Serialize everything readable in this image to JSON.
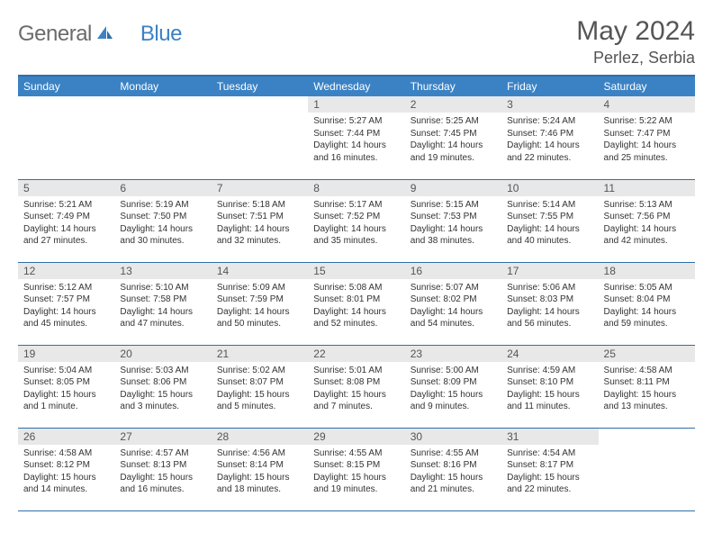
{
  "brand": {
    "part1": "General",
    "part2": "Blue"
  },
  "title": "May 2024",
  "location": "Perlez, Serbia",
  "colors": {
    "header_bg": "#3b82c4",
    "border": "#2f6fa7",
    "daynum_bg": "#e8e8e8",
    "text_muted": "#555555",
    "text_body": "#333333",
    "page_bg": "#ffffff"
  },
  "day_labels": [
    "Sunday",
    "Monday",
    "Tuesday",
    "Wednesday",
    "Thursday",
    "Friday",
    "Saturday"
  ],
  "weeks": [
    [
      {
        "empty": true
      },
      {
        "empty": true
      },
      {
        "empty": true
      },
      {
        "num": "1",
        "sunrise": "Sunrise: 5:27 AM",
        "sunset": "Sunset: 7:44 PM",
        "day1": "Daylight: 14 hours",
        "day2": "and 16 minutes."
      },
      {
        "num": "2",
        "sunrise": "Sunrise: 5:25 AM",
        "sunset": "Sunset: 7:45 PM",
        "day1": "Daylight: 14 hours",
        "day2": "and 19 minutes."
      },
      {
        "num": "3",
        "sunrise": "Sunrise: 5:24 AM",
        "sunset": "Sunset: 7:46 PM",
        "day1": "Daylight: 14 hours",
        "day2": "and 22 minutes."
      },
      {
        "num": "4",
        "sunrise": "Sunrise: 5:22 AM",
        "sunset": "Sunset: 7:47 PM",
        "day1": "Daylight: 14 hours",
        "day2": "and 25 minutes."
      }
    ],
    [
      {
        "num": "5",
        "sunrise": "Sunrise: 5:21 AM",
        "sunset": "Sunset: 7:49 PM",
        "day1": "Daylight: 14 hours",
        "day2": "and 27 minutes."
      },
      {
        "num": "6",
        "sunrise": "Sunrise: 5:19 AM",
        "sunset": "Sunset: 7:50 PM",
        "day1": "Daylight: 14 hours",
        "day2": "and 30 minutes."
      },
      {
        "num": "7",
        "sunrise": "Sunrise: 5:18 AM",
        "sunset": "Sunset: 7:51 PM",
        "day1": "Daylight: 14 hours",
        "day2": "and 32 minutes."
      },
      {
        "num": "8",
        "sunrise": "Sunrise: 5:17 AM",
        "sunset": "Sunset: 7:52 PM",
        "day1": "Daylight: 14 hours",
        "day2": "and 35 minutes."
      },
      {
        "num": "9",
        "sunrise": "Sunrise: 5:15 AM",
        "sunset": "Sunset: 7:53 PM",
        "day1": "Daylight: 14 hours",
        "day2": "and 38 minutes."
      },
      {
        "num": "10",
        "sunrise": "Sunrise: 5:14 AM",
        "sunset": "Sunset: 7:55 PM",
        "day1": "Daylight: 14 hours",
        "day2": "and 40 minutes."
      },
      {
        "num": "11",
        "sunrise": "Sunrise: 5:13 AM",
        "sunset": "Sunset: 7:56 PM",
        "day1": "Daylight: 14 hours",
        "day2": "and 42 minutes."
      }
    ],
    [
      {
        "num": "12",
        "sunrise": "Sunrise: 5:12 AM",
        "sunset": "Sunset: 7:57 PM",
        "day1": "Daylight: 14 hours",
        "day2": "and 45 minutes."
      },
      {
        "num": "13",
        "sunrise": "Sunrise: 5:10 AM",
        "sunset": "Sunset: 7:58 PM",
        "day1": "Daylight: 14 hours",
        "day2": "and 47 minutes."
      },
      {
        "num": "14",
        "sunrise": "Sunrise: 5:09 AM",
        "sunset": "Sunset: 7:59 PM",
        "day1": "Daylight: 14 hours",
        "day2": "and 50 minutes."
      },
      {
        "num": "15",
        "sunrise": "Sunrise: 5:08 AM",
        "sunset": "Sunset: 8:01 PM",
        "day1": "Daylight: 14 hours",
        "day2": "and 52 minutes."
      },
      {
        "num": "16",
        "sunrise": "Sunrise: 5:07 AM",
        "sunset": "Sunset: 8:02 PM",
        "day1": "Daylight: 14 hours",
        "day2": "and 54 minutes."
      },
      {
        "num": "17",
        "sunrise": "Sunrise: 5:06 AM",
        "sunset": "Sunset: 8:03 PM",
        "day1": "Daylight: 14 hours",
        "day2": "and 56 minutes."
      },
      {
        "num": "18",
        "sunrise": "Sunrise: 5:05 AM",
        "sunset": "Sunset: 8:04 PM",
        "day1": "Daylight: 14 hours",
        "day2": "and 59 minutes."
      }
    ],
    [
      {
        "num": "19",
        "sunrise": "Sunrise: 5:04 AM",
        "sunset": "Sunset: 8:05 PM",
        "day1": "Daylight: 15 hours",
        "day2": "and 1 minute."
      },
      {
        "num": "20",
        "sunrise": "Sunrise: 5:03 AM",
        "sunset": "Sunset: 8:06 PM",
        "day1": "Daylight: 15 hours",
        "day2": "and 3 minutes."
      },
      {
        "num": "21",
        "sunrise": "Sunrise: 5:02 AM",
        "sunset": "Sunset: 8:07 PM",
        "day1": "Daylight: 15 hours",
        "day2": "and 5 minutes."
      },
      {
        "num": "22",
        "sunrise": "Sunrise: 5:01 AM",
        "sunset": "Sunset: 8:08 PM",
        "day1": "Daylight: 15 hours",
        "day2": "and 7 minutes."
      },
      {
        "num": "23",
        "sunrise": "Sunrise: 5:00 AM",
        "sunset": "Sunset: 8:09 PM",
        "day1": "Daylight: 15 hours",
        "day2": "and 9 minutes."
      },
      {
        "num": "24",
        "sunrise": "Sunrise: 4:59 AM",
        "sunset": "Sunset: 8:10 PM",
        "day1": "Daylight: 15 hours",
        "day2": "and 11 minutes."
      },
      {
        "num": "25",
        "sunrise": "Sunrise: 4:58 AM",
        "sunset": "Sunset: 8:11 PM",
        "day1": "Daylight: 15 hours",
        "day2": "and 13 minutes."
      }
    ],
    [
      {
        "num": "26",
        "sunrise": "Sunrise: 4:58 AM",
        "sunset": "Sunset: 8:12 PM",
        "day1": "Daylight: 15 hours",
        "day2": "and 14 minutes."
      },
      {
        "num": "27",
        "sunrise": "Sunrise: 4:57 AM",
        "sunset": "Sunset: 8:13 PM",
        "day1": "Daylight: 15 hours",
        "day2": "and 16 minutes."
      },
      {
        "num": "28",
        "sunrise": "Sunrise: 4:56 AM",
        "sunset": "Sunset: 8:14 PM",
        "day1": "Daylight: 15 hours",
        "day2": "and 18 minutes."
      },
      {
        "num": "29",
        "sunrise": "Sunrise: 4:55 AM",
        "sunset": "Sunset: 8:15 PM",
        "day1": "Daylight: 15 hours",
        "day2": "and 19 minutes."
      },
      {
        "num": "30",
        "sunrise": "Sunrise: 4:55 AM",
        "sunset": "Sunset: 8:16 PM",
        "day1": "Daylight: 15 hours",
        "day2": "and 21 minutes."
      },
      {
        "num": "31",
        "sunrise": "Sunrise: 4:54 AM",
        "sunset": "Sunset: 8:17 PM",
        "day1": "Daylight: 15 hours",
        "day2": "and 22 minutes."
      },
      {
        "empty": true
      }
    ]
  ]
}
